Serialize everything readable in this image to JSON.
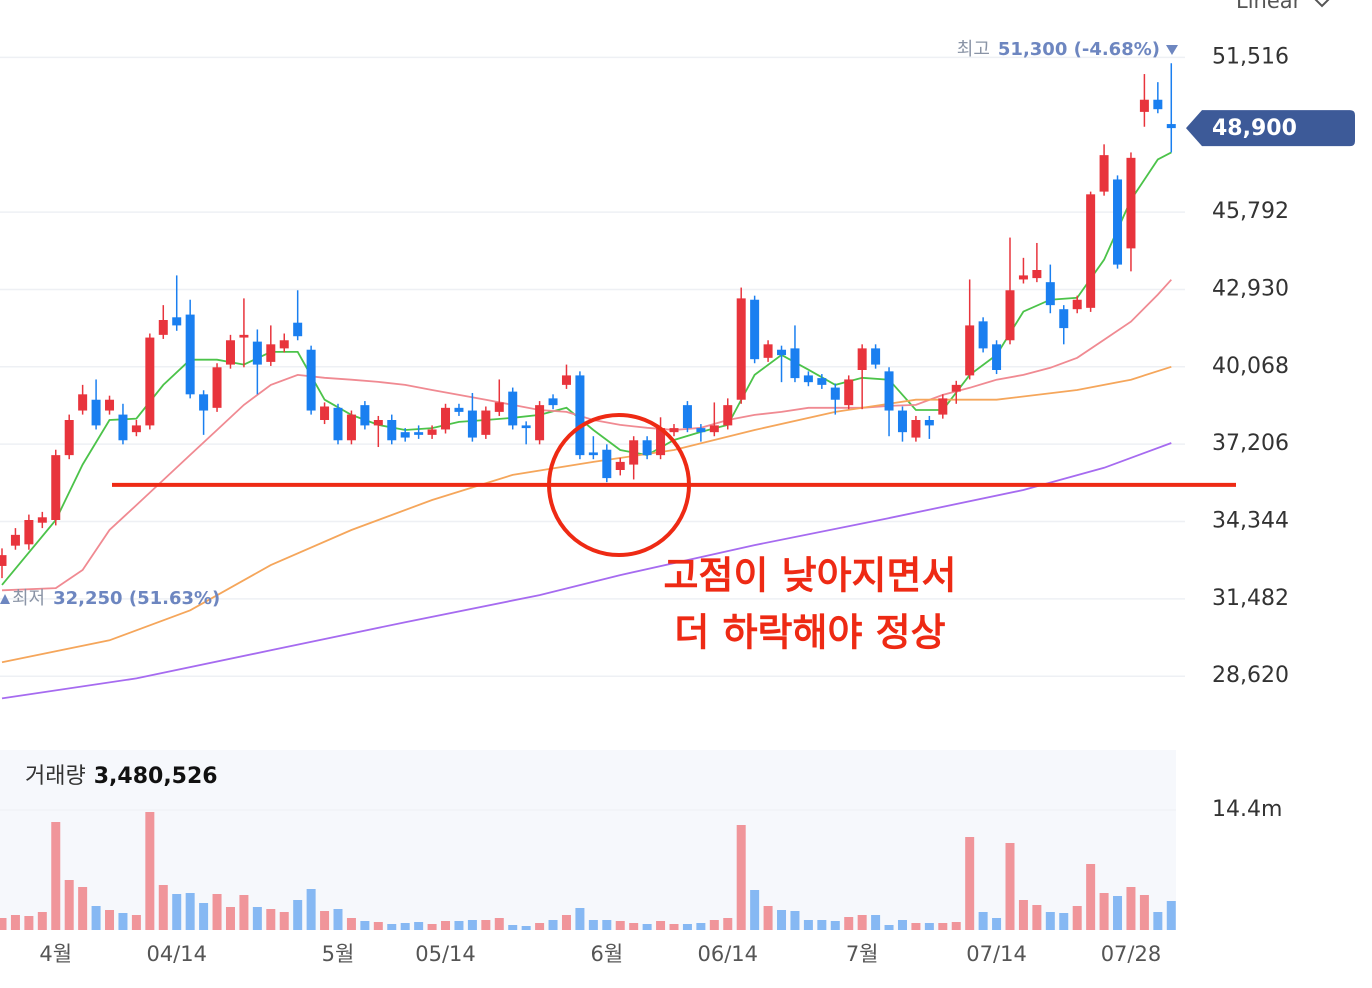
{
  "chart_data": {
    "type": "candlestick",
    "scale_mode": "Linear",
    "log_scale": false,
    "grid": true,
    "up_color": "#e8343c",
    "down_color": "#1a7ff0",
    "categories": [
      null,
      null,
      null,
      null,
      "4월",
      null,
      null,
      null,
      null,
      null,
      null,
      null,
      null,
      "04/14",
      null,
      null,
      null,
      null,
      null,
      null,
      null,
      null,
      null,
      null,
      null,
      "5월",
      null,
      null,
      null,
      null,
      null,
      null,
      null,
      "05/14",
      null,
      null,
      null,
      null,
      null,
      null,
      null,
      null,
      null,
      null,
      null,
      "6월",
      null,
      null,
      null,
      null,
      null,
      null,
      null,
      null,
      "06/14",
      null,
      null,
      null,
      null,
      null,
      null,
      null,
      null,
      null,
      "7월",
      null,
      null,
      null,
      null,
      null,
      null,
      null,
      null,
      null,
      "07/14",
      null,
      null,
      null,
      null,
      null,
      null,
      null,
      null,
      null,
      "07/28",
      null,
      null,
      null
    ],
    "ohlc": [
      [
        32700,
        33350,
        32250,
        33100
      ],
      [
        33450,
        34100,
        33300,
        33850
      ],
      [
        33500,
        34600,
        33300,
        34400
      ],
      [
        34300,
        34700,
        34100,
        34500
      ],
      [
        34400,
        37000,
        34200,
        36800
      ],
      [
        36800,
        38300,
        36650,
        38100
      ],
      [
        38450,
        39400,
        38300,
        39050
      ],
      [
        38850,
        39600,
        37750,
        37900
      ],
      [
        38450,
        39000,
        38300,
        38850
      ],
      [
        38300,
        38700,
        37200,
        37350
      ],
      [
        37650,
        38100,
        37500,
        37900
      ],
      [
        37900,
        41300,
        37750,
        41150
      ],
      [
        41250,
        42350,
        41100,
        41800
      ],
      [
        41900,
        43450,
        41400,
        41600
      ],
      [
        42000,
        42550,
        38900,
        39050
      ],
      [
        39050,
        39200,
        37550,
        38450
      ],
      [
        38550,
        40200,
        38400,
        40050
      ],
      [
        40150,
        41250,
        40000,
        41050
      ],
      [
        41150,
        42600,
        40050,
        41250
      ],
      [
        41000,
        41450,
        39050,
        40150
      ],
      [
        40250,
        41600,
        40100,
        40900
      ],
      [
        40750,
        41300,
        40600,
        41050
      ],
      [
        41700,
        42900,
        41050,
        41200
      ],
      [
        40700,
        40850,
        38300,
        38450
      ],
      [
        38100,
        38750,
        37950,
        38600
      ],
      [
        38550,
        38700,
        37200,
        37350
      ],
      [
        37350,
        38450,
        37200,
        38300
      ],
      [
        38650,
        38800,
        37750,
        37900
      ],
      [
        37900,
        38250,
        37100,
        38100
      ],
      [
        38100,
        38300,
        37200,
        37350
      ],
      [
        37650,
        37800,
        37300,
        37450
      ],
      [
        37650,
        37900,
        37400,
        37550
      ],
      [
        37550,
        37900,
        37400,
        37750
      ],
      [
        37750,
        38700,
        37600,
        38550
      ],
      [
        38550,
        38700,
        38250,
        38400
      ],
      [
        38450,
        39100,
        37300,
        37450
      ],
      [
        37550,
        38600,
        37400,
        38450
      ],
      [
        38400,
        39600,
        38250,
        38750
      ],
      [
        39150,
        39300,
        37750,
        37900
      ],
      [
        37900,
        38050,
        37200,
        37800
      ],
      [
        37350,
        38800,
        37200,
        38650
      ],
      [
        38900,
        39050,
        38500,
        38650
      ],
      [
        39400,
        40150,
        39250,
        39750
      ],
      [
        39750,
        39900,
        36650,
        36800
      ],
      [
        36900,
        37500,
        36650,
        36800
      ],
      [
        37000,
        37200,
        35800,
        35950
      ],
      [
        36250,
        36700,
        36050,
        36550
      ],
      [
        36450,
        37500,
        35900,
        37350
      ],
      [
        37350,
        37500,
        36650,
        36800
      ],
      [
        36800,
        38200,
        36650,
        37800
      ],
      [
        37650,
        37950,
        37500,
        37800
      ],
      [
        38650,
        38800,
        37650,
        37800
      ],
      [
        37800,
        37950,
        37300,
        37650
      ],
      [
        37650,
        38750,
        37500,
        37900
      ],
      [
        37900,
        38900,
        37750,
        38650
      ],
      [
        38850,
        43000,
        38700,
        42600
      ],
      [
        42550,
        42700,
        40200,
        40350
      ],
      [
        40400,
        41050,
        40250,
        40900
      ],
      [
        40700,
        40850,
        39500,
        40500
      ],
      [
        40750,
        41600,
        39500,
        39650
      ],
      [
        39750,
        39900,
        39350,
        39500
      ],
      [
        39650,
        39800,
        39250,
        39400
      ],
      [
        39300,
        39450,
        38300,
        38850
      ],
      [
        38650,
        39750,
        38500,
        39600
      ],
      [
        39950,
        40900,
        38500,
        40750
      ],
      [
        40750,
        40900,
        40000,
        40150
      ],
      [
        39900,
        40050,
        37500,
        38450
      ],
      [
        38450,
        38600,
        37300,
        37650
      ],
      [
        37450,
        38250,
        37300,
        38100
      ],
      [
        38100,
        38250,
        37400,
        37900
      ],
      [
        38300,
        39050,
        38150,
        38900
      ],
      [
        39150,
        39550,
        38700,
        39400
      ],
      [
        39750,
        43300,
        39600,
        41600
      ],
      [
        41750,
        41900,
        40600,
        40750
      ],
      [
        40900,
        41050,
        39800,
        39950
      ],
      [
        41050,
        44850,
        40900,
        42900
      ],
      [
        43300,
        44100,
        43150,
        43450
      ],
      [
        43350,
        44650,
        43200,
        43650
      ],
      [
        43200,
        43850,
        42050,
        42350
      ],
      [
        42200,
        42350,
        40900,
        41500
      ],
      [
        42200,
        42700,
        42050,
        42550
      ],
      [
        42250,
        46550,
        42100,
        46450
      ],
      [
        46550,
        48300,
        46400,
        47900
      ],
      [
        47000,
        47150,
        43700,
        43850
      ],
      [
        44450,
        48000,
        43600,
        47800
      ],
      [
        49500,
        50900,
        48950,
        49950
      ],
      [
        49950,
        50600,
        49450,
        49600
      ],
      [
        49050,
        51300,
        48000,
        48900
      ]
    ],
    "ylim": [
      27000,
      52900
    ],
    "yticks": [
      {
        "value": 28620,
        "label": "28,620"
      },
      {
        "value": 31482,
        "label": "31,482"
      },
      {
        "value": 34344,
        "label": "34,344"
      },
      {
        "value": 37206,
        "label": "37,206"
      },
      {
        "value": 40068,
        "label": "40,068"
      },
      {
        "value": 42930,
        "label": "42,930"
      },
      {
        "value": 45792,
        "label": "45,792"
      },
      {
        "value": 51516,
        "label": "51,516"
      }
    ],
    "moving_averages": [
      {
        "color": "#4cc34a",
        "x": [
          0,
          4,
          6,
          8,
          10,
          12,
          14,
          16,
          18,
          20,
          22,
          24,
          26,
          28,
          30,
          32,
          34,
          36,
          38,
          40,
          42,
          44,
          46,
          48,
          50,
          52,
          54,
          56,
          58,
          60,
          62,
          64,
          66,
          68,
          70,
          72,
          74,
          76,
          78,
          80,
          82,
          84,
          86,
          87
        ],
        "values": [
          32000,
          34400,
          36450,
          38100,
          38150,
          39400,
          40330,
          40330,
          40150,
          40620,
          40620,
          38850,
          38290,
          37920,
          37730,
          37800,
          38030,
          38100,
          38180,
          38290,
          38550,
          37730,
          36990,
          36800,
          37360,
          37660,
          37920,
          39770,
          40510,
          39960,
          39400,
          39660,
          39590,
          38470,
          38470,
          39770,
          40510,
          42110,
          42550,
          42620,
          44030,
          46250,
          47740,
          48000
        ]
      },
      {
        "color": "#f08a92",
        "x": [
          0,
          4,
          6,
          8,
          10,
          12,
          14,
          16,
          18,
          20,
          22,
          24,
          26,
          28,
          30,
          32,
          34,
          36,
          38,
          40,
          42,
          44,
          46,
          48,
          50,
          52,
          54,
          56,
          58,
          60,
          62,
          64,
          66,
          68,
          70,
          72,
          74,
          76,
          78,
          80,
          82,
          84,
          86,
          87
        ],
        "values": [
          31800,
          31880,
          32550,
          34030,
          34950,
          35880,
          36810,
          37730,
          38660,
          39400,
          39770,
          39660,
          39590,
          39510,
          39400,
          39210,
          39030,
          38850,
          38660,
          38470,
          38400,
          38100,
          37920,
          37810,
          37730,
          37810,
          38100,
          38290,
          38400,
          38550,
          38550,
          38550,
          38620,
          38660,
          39030,
          39290,
          39590,
          39770,
          40030,
          40400,
          41070,
          41740,
          42740,
          43290
        ]
      },
      {
        "color": "#f5a65b",
        "x": [
          0,
          8,
          14,
          20,
          26,
          32,
          38,
          44,
          50,
          56,
          62,
          68,
          74,
          80,
          84,
          87
        ],
        "values": [
          29140,
          29950,
          31060,
          32730,
          34030,
          35140,
          36070,
          36550,
          36990,
          37730,
          38400,
          38850,
          38850,
          39210,
          39590,
          40070
        ]
      },
      {
        "color": "#a66bf0",
        "x": [
          0,
          10,
          20,
          30,
          40,
          46,
          56,
          66,
          76,
          82,
          87
        ],
        "values": [
          27800,
          28540,
          29580,
          30620,
          31620,
          32360,
          33470,
          34470,
          35510,
          36330,
          37250
        ]
      }
    ],
    "last_price": {
      "value": 48900,
      "label": "48,900",
      "color": "#3d5a98"
    },
    "max_annotation": {
      "label": "최고",
      "text": "51,300 (-4.68%)"
    },
    "min_annotation": {
      "label": "최저",
      "text": "32,250 (51.63%)"
    },
    "support_line": {
      "value": 35700,
      "color": "#ee2a14"
    },
    "annotation": [
      "고점이 낮아지면서",
      "더 하락해야 정상"
    ],
    "volume": {
      "label": "거래량",
      "current_label": "3,480,526",
      "up_color": "#f0959a",
      "down_color": "#86b8f3",
      "ylim": [
        0,
        21600000
      ],
      "yticks": [
        {
          "value": 14400000,
          "label": "14.4m"
        }
      ],
      "values": [
        1440000,
        1800000,
        1680000,
        2160000,
        12960000,
        6000000,
        5160000,
        2880000,
        2400000,
        2040000,
        1800000,
        14160000,
        5400000,
        4320000,
        4440000,
        3240000,
        4320000,
        2760000,
        4200000,
        2760000,
        2520000,
        2160000,
        3600000,
        4920000,
        2280000,
        2520000,
        1440000,
        1080000,
        960000,
        720000,
        840000,
        960000,
        720000,
        1080000,
        1080000,
        1200000,
        1200000,
        1440000,
        600000,
        480000,
        840000,
        1200000,
        1800000,
        2640000,
        1200000,
        1200000,
        1080000,
        840000,
        720000,
        1080000,
        720000,
        720000,
        840000,
        1200000,
        1440000,
        12600000,
        4800000,
        2880000,
        2400000,
        2280000,
        1200000,
        1200000,
        1080000,
        1560000,
        1800000,
        1800000,
        600000,
        1200000,
        840000,
        840000,
        840000,
        960000,
        11160000,
        2160000,
        1440000,
        10440000,
        3600000,
        3000000,
        2160000,
        2040000,
        2880000,
        7920000,
        4440000,
        4080000,
        5160000,
        4200000,
        2160000,
        3480526
      ]
    }
  }
}
